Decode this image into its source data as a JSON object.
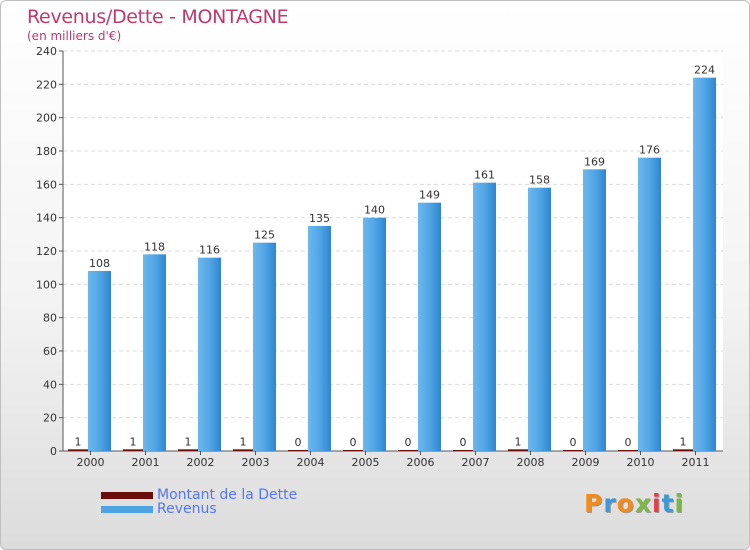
{
  "title": "Revenus/Dette - MONTAGNE",
  "subtitle": "(en milliers d'€)",
  "chart_data": {
    "type": "bar",
    "categories": [
      "2000",
      "2001",
      "2002",
      "2003",
      "2004",
      "2005",
      "2006",
      "2007",
      "2008",
      "2009",
      "2010",
      "2011"
    ],
    "series": [
      {
        "name": "Montant de la Dette",
        "color": "#6b0d0d",
        "values": [
          1,
          1,
          1,
          1,
          0,
          0,
          0,
          0,
          1,
          0,
          0,
          1
        ]
      },
      {
        "name": "Revenus",
        "color": "#4fa3e3",
        "values": [
          108,
          118,
          116,
          125,
          135,
          140,
          149,
          161,
          158,
          169,
          176,
          224
        ]
      }
    ],
    "ylim": [
      0,
      240
    ],
    "yticks": [
      0,
      20,
      40,
      60,
      80,
      100,
      120,
      140,
      160,
      180,
      200,
      220,
      240
    ],
    "grid": true,
    "legend_position": "bottom-left"
  },
  "legend": {
    "debt_label": "Montant de la Dette",
    "revenue_label": "Revenus",
    "debt_color": "#6b0d0d",
    "revenue_color": "#4fa3e3"
  },
  "logo": {
    "letters": [
      "P",
      "r",
      "o",
      "x",
      "i",
      "t",
      "i"
    ],
    "colors": [
      "#f08c1e",
      "#3a9ad9",
      "#f08c1e",
      "#7ab648",
      "#e0404a",
      "#3a9ad9",
      "#7ab648"
    ]
  }
}
